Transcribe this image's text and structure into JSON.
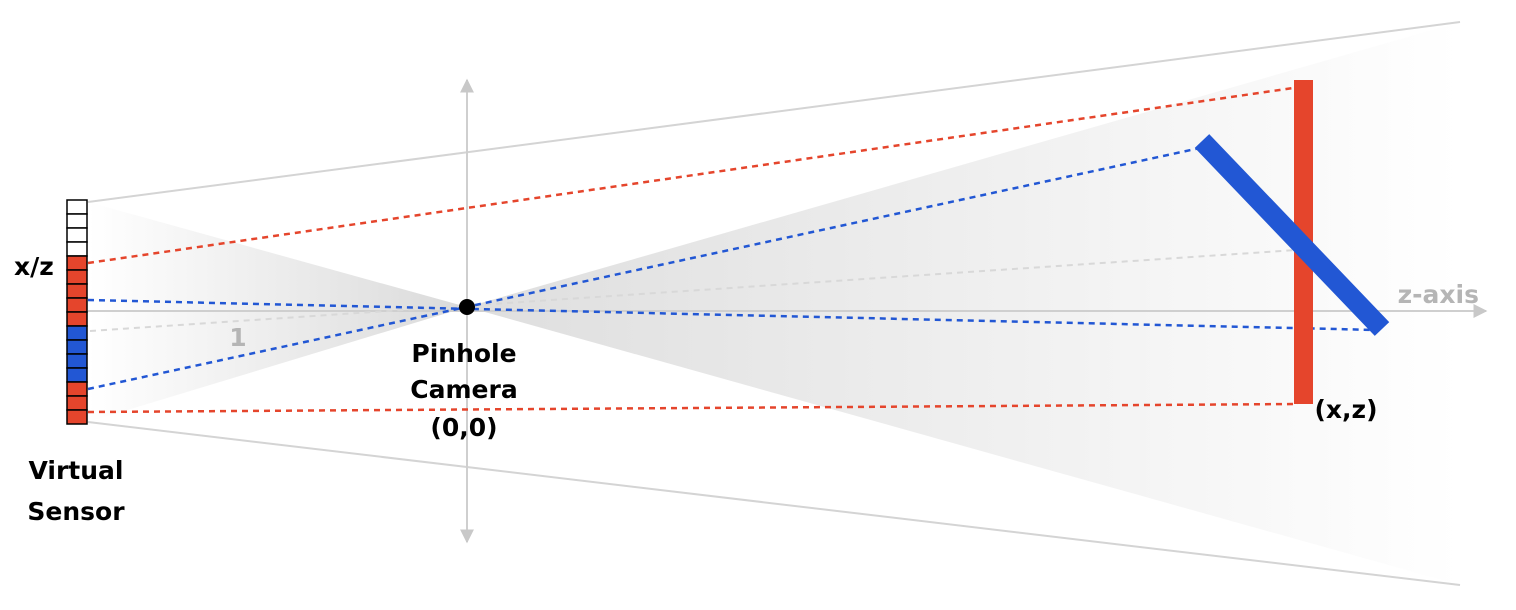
{
  "labels": {
    "sensor_coord": "x/z",
    "unit_distance": "1",
    "camera_line1": "Pinhole",
    "camera_line2": "Camera",
    "camera_line3": "(0,0)",
    "sensor_line1": "Virtual",
    "sensor_line2": "Sensor",
    "axis": "z-axis",
    "point": "(x,z)"
  },
  "colors": {
    "red": "#e5452c",
    "blue": "#2257d4",
    "gray": "#bdbdbd",
    "frustum": "#d6d6d6",
    "text": "#000000",
    "axis_text": "#b5b5b5"
  },
  "sensor_pixels": [
    "empty",
    "empty",
    "empty",
    "empty",
    "red",
    "red",
    "red",
    "red",
    "red",
    "blue",
    "blue",
    "blue",
    "blue",
    "red",
    "red",
    "red"
  ]
}
